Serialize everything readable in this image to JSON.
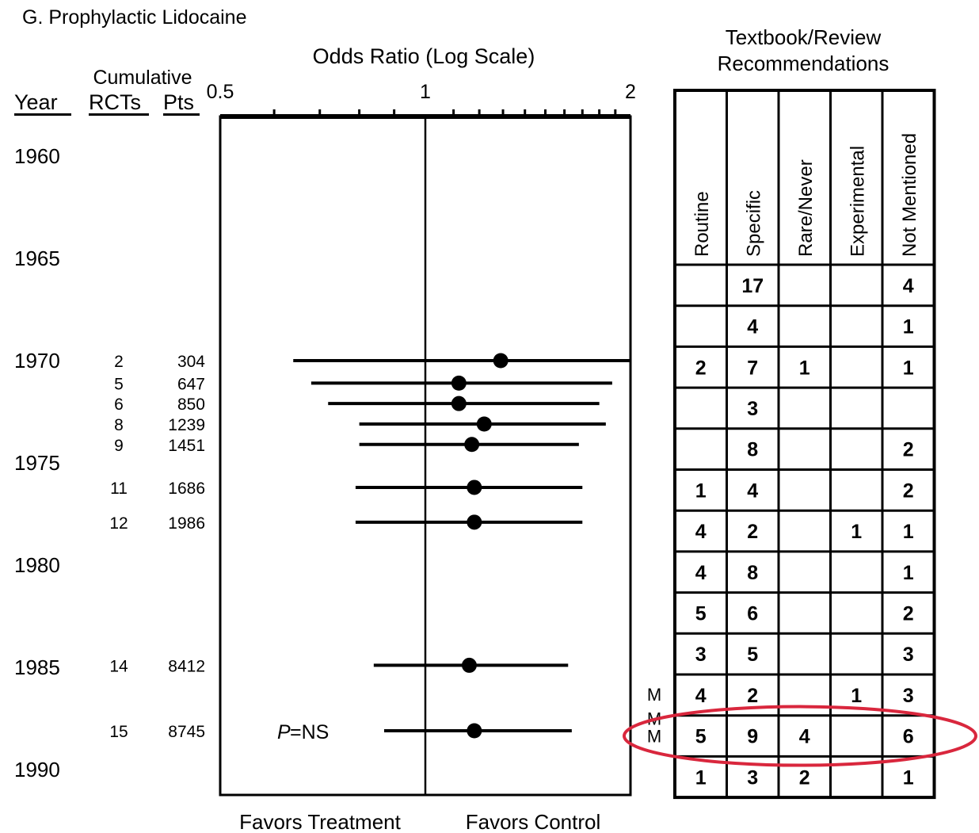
{
  "panel_title": "G.  Prophylactic Lidocaine",
  "axis_title": "Odds Ratio (Log Scale)",
  "columns": {
    "cumulative": "Cumulative",
    "year": "Year",
    "rcts": "RCTs",
    "pts": "Pts"
  },
  "x_ticks": [
    {
      "value": 0.5,
      "label": "0.5"
    },
    {
      "value": 1,
      "label": "1"
    },
    {
      "value": 2,
      "label": "2"
    }
  ],
  "year_labels": [
    "1960",
    "1965",
    "1970",
    "1975",
    "1980",
    "1985",
    "1990"
  ],
  "p_label": "P",
  "p_value": "=NS",
  "favors_treatment": "Favors Treatment",
  "favors_control": "Favors Control",
  "table_title_line1": "Textbook/Review",
  "table_title_line2": "Recommendations",
  "table_headers": [
    "Routine",
    "Specific",
    "Rare/Never",
    "Experimental",
    "Not Mentioned"
  ],
  "table_rows": [
    [
      "",
      "17",
      "",
      "",
      "4"
    ],
    [
      "",
      "4",
      "",
      "",
      "1"
    ],
    [
      "2",
      "7",
      "1",
      "",
      "1"
    ],
    [
      "",
      "3",
      "",
      "",
      ""
    ],
    [
      "",
      "8",
      "",
      "",
      "2"
    ],
    [
      "1",
      "4",
      "",
      "",
      "2"
    ],
    [
      "4",
      "2",
      "",
      "1",
      "1"
    ],
    [
      "4",
      "8",
      "",
      "",
      "1"
    ],
    [
      "5",
      "6",
      "",
      "",
      "2"
    ],
    [
      "3",
      "5",
      "",
      "",
      "3"
    ],
    [
      "4",
      "2",
      "",
      "1",
      "3"
    ],
    [
      "5",
      "9",
      "4",
      "",
      "6"
    ],
    [
      "1",
      "3",
      "2",
      "",
      "1"
    ]
  ],
  "row_markers": [
    {
      "row": 10,
      "text": "M"
    },
    {
      "row": 11,
      "text": "M"
    },
    {
      "row": 11,
      "text": "M"
    }
  ],
  "highlight_row": 11,
  "highlight_color": "#d9273d",
  "chart_data": {
    "type": "forest",
    "title": "",
    "xlabel": "Odds Ratio (Log Scale)",
    "xscale": "log",
    "xlim": [
      0.5,
      2
    ],
    "ylim_year": [
      1958,
      1991
    ],
    "points": [
      {
        "year": 1970,
        "rcts": "2",
        "pts": "304",
        "or": 1.29,
        "lo": 0.64,
        "hi": 2.0
      },
      {
        "year": 1971.1,
        "rcts": "5",
        "pts": "647",
        "or": 1.12,
        "lo": 0.68,
        "hi": 1.88
      },
      {
        "year": 1972.1,
        "rcts": "6",
        "pts": "850",
        "or": 1.12,
        "lo": 0.72,
        "hi": 1.8
      },
      {
        "year": 1973.1,
        "rcts": "8",
        "pts": "1239",
        "or": 1.22,
        "lo": 0.8,
        "hi": 1.84
      },
      {
        "year": 1974.1,
        "rcts": "9",
        "pts": "1451",
        "or": 1.17,
        "lo": 0.8,
        "hi": 1.68
      },
      {
        "year": 1976.2,
        "rcts": "11",
        "pts": "1686",
        "or": 1.18,
        "lo": 0.79,
        "hi": 1.7
      },
      {
        "year": 1977.9,
        "rcts": "12",
        "pts": "1986",
        "or": 1.18,
        "lo": 0.79,
        "hi": 1.7
      },
      {
        "year": 1984.9,
        "rcts": "14",
        "pts": "8412",
        "or": 1.16,
        "lo": 0.84,
        "hi": 1.62
      },
      {
        "year": 1988.1,
        "rcts": "15",
        "pts": "8745",
        "or": 1.18,
        "lo": 0.87,
        "hi": 1.64
      }
    ]
  }
}
